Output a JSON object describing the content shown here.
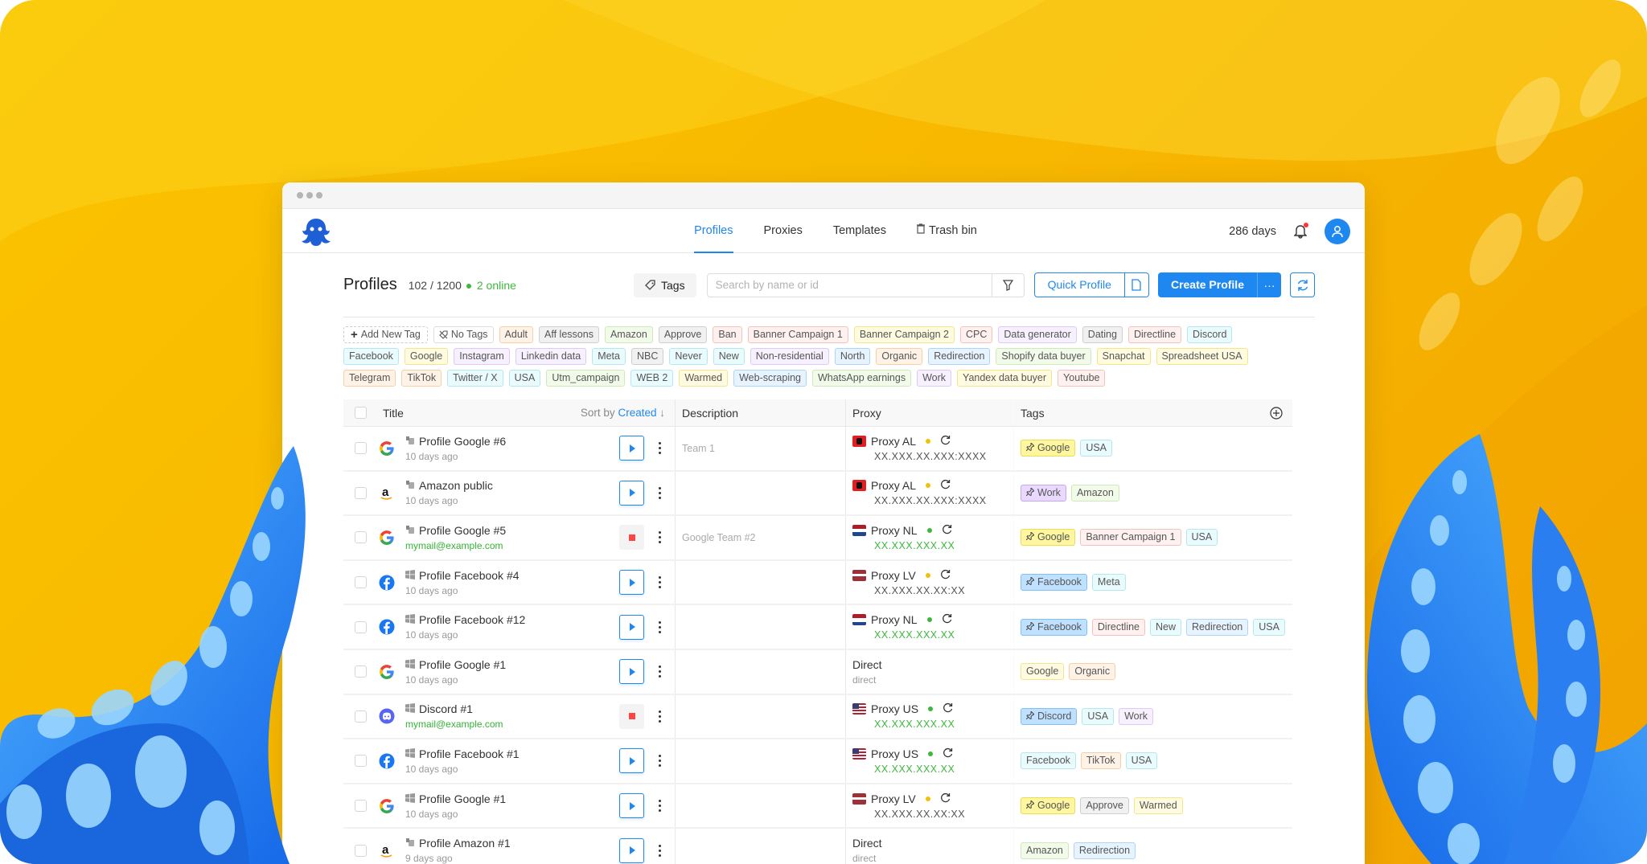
{
  "colors": {
    "accent": "#1e88f0",
    "online": "#3db83d",
    "background": "#f9bd00",
    "tentacle": "#2f8cf5"
  },
  "nav": {
    "tabs": [
      {
        "label": "Profiles",
        "active": true
      },
      {
        "label": "Proxies"
      },
      {
        "label": "Templates"
      },
      {
        "label": "Trash bin",
        "icon": "trash-icon"
      }
    ],
    "days_left": "286 days",
    "notifications": true
  },
  "header": {
    "title": "Profiles",
    "count": "102 / 1200",
    "online": "2 online",
    "tags_button": "Tags",
    "search_placeholder": "Search by name or id",
    "quick_profile": "Quick Profile",
    "create_profile": "Create Profile",
    "more": "···"
  },
  "tag_filter": {
    "add_label": "Add New Tag",
    "no_tags_label": "No Tags",
    "tags": [
      {
        "name": "Adult",
        "color": "orange"
      },
      {
        "name": "Aff lessons",
        "color": "gray"
      },
      {
        "name": "Amazon",
        "color": "green"
      },
      {
        "name": "Approve",
        "color": "gray"
      },
      {
        "name": "Ban",
        "color": "red"
      },
      {
        "name": "Banner Campaign 1",
        "color": "red"
      },
      {
        "name": "Banner Campaign 2",
        "color": "yellow"
      },
      {
        "name": "CPC",
        "color": "red"
      },
      {
        "name": "Data generator",
        "color": "purple"
      },
      {
        "name": "Dating",
        "color": "gray"
      },
      {
        "name": "Directline",
        "color": "red"
      },
      {
        "name": "Discord",
        "color": "cyan"
      },
      {
        "name": "Facebook",
        "color": "cyan"
      },
      {
        "name": "Google",
        "color": "yellow"
      },
      {
        "name": "Instagram",
        "color": "purple"
      },
      {
        "name": "Linkedin data",
        "color": "purple"
      },
      {
        "name": "Meta",
        "color": "cyan"
      },
      {
        "name": "NBC",
        "color": "gray"
      },
      {
        "name": "Never",
        "color": "cyan"
      },
      {
        "name": "New",
        "color": "cyan"
      },
      {
        "name": "Non-residential",
        "color": "purple"
      },
      {
        "name": "North",
        "color": "blue"
      },
      {
        "name": "Organic",
        "color": "orange"
      },
      {
        "name": "Redirection",
        "color": "blue"
      },
      {
        "name": "Shopify data buyer",
        "color": "green"
      },
      {
        "name": "Snapchat",
        "color": "yellow"
      },
      {
        "name": "Spreadsheet USA",
        "color": "yellow"
      },
      {
        "name": "Telegram",
        "color": "orange"
      },
      {
        "name": "TikTok",
        "color": "orange"
      },
      {
        "name": "Twitter / X",
        "color": "cyan"
      },
      {
        "name": "USA",
        "color": "cyan"
      },
      {
        "name": "Utm_campaign",
        "color": "green"
      },
      {
        "name": "WEB 2",
        "color": "cyan"
      },
      {
        "name": "Warmed",
        "color": "yellow"
      },
      {
        "name": "Web-scraping",
        "color": "blue"
      },
      {
        "name": "WhatsApp earnings",
        "color": "green"
      },
      {
        "name": "Work",
        "color": "purple"
      },
      {
        "name": "Yandex data buyer",
        "color": "yellow"
      },
      {
        "name": "Youtube",
        "color": "red"
      }
    ]
  },
  "table": {
    "columns": {
      "title": "Title",
      "sort_prefix": "Sort by",
      "sort_field": "Created",
      "description": "Description",
      "proxy": "Proxy",
      "tags": "Tags"
    },
    "rows": [
      {
        "icon": "google",
        "os": "apple",
        "title": "Profile Google #6",
        "sub": "10 days ago",
        "running": false,
        "description": "Team 1",
        "proxy": {
          "name": "Proxy AL",
          "country": "AL",
          "status": "yellow",
          "address": "XX.XXX.XX.XXX:XXXX"
        },
        "tags": [
          {
            "name": "Google",
            "color": "yellow",
            "pinned": true
          },
          {
            "name": "USA",
            "color": "cyan"
          }
        ]
      },
      {
        "icon": "amazon",
        "os": "apple",
        "title": "Amazon public",
        "sub": "10 days ago",
        "running": false,
        "description": "",
        "proxy": {
          "name": "Proxy AL",
          "country": "AL",
          "status": "yellow",
          "address": "XX.XXX.XX.XXX:XXXX"
        },
        "tags": [
          {
            "name": "Work",
            "color": "purple",
            "pinned": true
          },
          {
            "name": "Amazon",
            "color": "green"
          }
        ]
      },
      {
        "icon": "google",
        "os": "apple",
        "title": "Profile Google #5",
        "sub": "mymail@example.com",
        "sub_is_email": true,
        "running": true,
        "description": "Google Team #2",
        "proxy": {
          "name": "Proxy NL",
          "country": "NL",
          "status": "green",
          "address": "XX.XXX.XXX.XX"
        },
        "tags": [
          {
            "name": "Google",
            "color": "yellow",
            "pinned": true
          },
          {
            "name": "Banner Campaign 1",
            "color": "red"
          },
          {
            "name": "USA",
            "color": "cyan"
          }
        ]
      },
      {
        "icon": "facebook",
        "os": "windows",
        "title": "Profile Facebook #4",
        "sub": "10 days ago",
        "running": false,
        "description": "",
        "proxy": {
          "name": "Proxy LV",
          "country": "LV",
          "status": "yellow",
          "address": "XX.XXX.XX.XX:XX"
        },
        "tags": [
          {
            "name": "Facebook",
            "color": "blue",
            "pinned": true
          },
          {
            "name": "Meta",
            "color": "cyan"
          }
        ]
      },
      {
        "icon": "facebook",
        "os": "windows",
        "title": "Profile Facebook #12",
        "sub": "10 days ago",
        "running": false,
        "description": "",
        "proxy": {
          "name": "Proxy NL",
          "country": "NL",
          "status": "green",
          "address": "XX.XXX.XXX.XX"
        },
        "tags": [
          {
            "name": "Facebook",
            "color": "blue",
            "pinned": true
          },
          {
            "name": "Directline",
            "color": "red"
          },
          {
            "name": "New",
            "color": "cyan"
          },
          {
            "name": "Redirection",
            "color": "blue"
          },
          {
            "name": "USA",
            "color": "cyan"
          }
        ]
      },
      {
        "icon": "google",
        "os": "windows",
        "title": "Profile Google #1",
        "sub": "10 days ago",
        "running": false,
        "description": "",
        "proxy": {
          "name": "Direct",
          "direct": true,
          "address": "direct"
        },
        "tags": [
          {
            "name": "Google",
            "color": "yellow"
          },
          {
            "name": "Organic",
            "color": "orange"
          }
        ]
      },
      {
        "icon": "discord",
        "os": "windows",
        "title": "Discord #1",
        "sub": "mymail@example.com",
        "sub_is_email": true,
        "running": true,
        "description": "",
        "proxy": {
          "name": "Proxy US",
          "country": "US",
          "status": "green",
          "address": "XX.XXX.XXX.XX"
        },
        "tags": [
          {
            "name": "Discord",
            "color": "blue",
            "pinned": true
          },
          {
            "name": "USA",
            "color": "cyan"
          },
          {
            "name": "Work",
            "color": "purple"
          }
        ]
      },
      {
        "icon": "facebook",
        "os": "windows",
        "title": "Profile Facebook #1",
        "sub": "10 days ago",
        "running": false,
        "description": "",
        "proxy": {
          "name": "Proxy US",
          "country": "US",
          "status": "green",
          "address": "XX.XXX.XXX.XX"
        },
        "tags": [
          {
            "name": "Facebook",
            "color": "cyan"
          },
          {
            "name": "TikTok",
            "color": "orange"
          },
          {
            "name": "USA",
            "color": "cyan"
          }
        ]
      },
      {
        "icon": "google",
        "os": "windows",
        "title": "Profile Google #1",
        "sub": "10 days ago",
        "running": false,
        "description": "",
        "proxy": {
          "name": "Proxy LV",
          "country": "LV",
          "status": "yellow",
          "address": "XX.XXX.XX.XX:XX"
        },
        "tags": [
          {
            "name": "Google",
            "color": "yellow",
            "pinned": true
          },
          {
            "name": "Approve",
            "color": "gray"
          },
          {
            "name": "Warmed",
            "color": "yellow"
          }
        ]
      },
      {
        "icon": "amazon",
        "os": "apple",
        "title": "Profile Amazon #1",
        "sub": "9 days ago",
        "running": false,
        "description": "",
        "proxy": {
          "name": "Direct",
          "direct": true,
          "address": "direct"
        },
        "tags": [
          {
            "name": "Amazon",
            "color": "green"
          },
          {
            "name": "Redirection",
            "color": "blue"
          }
        ]
      }
    ]
  }
}
